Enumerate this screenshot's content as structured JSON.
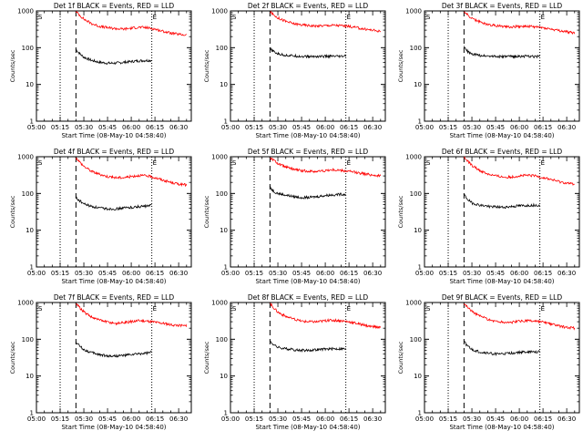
{
  "figure": {
    "x_tick_labels": [
      "05:00",
      "05:15",
      "05:30",
      "05:45",
      "06:00",
      "06:15",
      "06:30"
    ],
    "y_tick_labels": [
      "1",
      "10",
      "100",
      "1000"
    ],
    "xlabel": "Start Time (08-May-10 04:58:40)",
    "ylabel": "Counts/sec",
    "marker_start": "S",
    "marker_end": "E",
    "colors": {
      "events": "#000000",
      "lld": "#ff0000",
      "axes": "#000000",
      "background": "#ffffff"
    }
  },
  "chart_data": [
    {
      "type": "line",
      "title": "Det 1f BLACK = Events, RED = LLD",
      "xlabel": "Start Time (08-May-10 04:58:40)",
      "ylabel": "Counts/sec",
      "x_unit": "minutes after 05:00",
      "xlim": [
        0,
        98
      ],
      "ylim": [
        1,
        1000
      ],
      "yscale": "log",
      "vlines_dotted": [
        15,
        73
      ],
      "vline_dashed": 25,
      "series": [
        {
          "name": "Events",
          "color": "#000000",
          "x": [
            25,
            26,
            28,
            30,
            35,
            40,
            45,
            50,
            55,
            60,
            65,
            70,
            73
          ],
          "y": [
            90,
            80,
            65,
            55,
            45,
            40,
            38,
            38,
            40,
            42,
            44,
            45,
            45
          ]
        },
        {
          "name": "LLD",
          "color": "#ff0000",
          "x": [
            25,
            27,
            30,
            35,
            40,
            45,
            50,
            55,
            60,
            65,
            70,
            75,
            80,
            85,
            90,
            95
          ],
          "y": [
            950,
            800,
            600,
            450,
            380,
            350,
            330,
            320,
            340,
            360,
            350,
            320,
            280,
            250,
            230,
            220
          ]
        }
      ]
    },
    {
      "type": "line",
      "title": "Det 2f BLACK = Events, RED = LLD",
      "xlabel": "Start Time (08-May-10 04:58:40)",
      "ylabel": "Counts/sec",
      "x_unit": "minutes after 05:00",
      "xlim": [
        0,
        98
      ],
      "ylim": [
        1,
        1000
      ],
      "yscale": "log",
      "vlines_dotted": [
        15,
        73
      ],
      "vline_dashed": 25,
      "series": [
        {
          "name": "Events",
          "color": "#000000",
          "x": [
            25,
            26,
            28,
            30,
            35,
            40,
            45,
            50,
            55,
            60,
            65,
            70,
            73
          ],
          "y": [
            95,
            85,
            75,
            68,
            62,
            60,
            58,
            57,
            58,
            58,
            58,
            57,
            60
          ]
        },
        {
          "name": "LLD",
          "color": "#ff0000",
          "x": [
            25,
            27,
            30,
            35,
            40,
            45,
            50,
            55,
            60,
            65,
            70,
            75,
            80,
            85,
            90,
            95
          ],
          "y": [
            950,
            800,
            650,
            520,
            450,
            420,
            400,
            390,
            400,
            410,
            400,
            380,
            350,
            320,
            300,
            280
          ]
        }
      ]
    },
    {
      "type": "line",
      "title": "Det 3f BLACK = Events, RED = LLD",
      "xlabel": "Start Time (08-May-10 04:58:40)",
      "ylabel": "Counts/sec",
      "x_unit": "minutes after 05:00",
      "xlim": [
        0,
        98
      ],
      "ylim": [
        1,
        1000
      ],
      "yscale": "log",
      "vlines_dotted": [
        15,
        73
      ],
      "vline_dashed": 25,
      "series": [
        {
          "name": "Events",
          "color": "#000000",
          "x": [
            25,
            26,
            28,
            30,
            35,
            40,
            45,
            50,
            55,
            60,
            65,
            70,
            73
          ],
          "y": [
            110,
            90,
            75,
            66,
            62,
            60,
            58,
            57,
            58,
            58,
            58,
            57,
            60
          ]
        },
        {
          "name": "LLD",
          "color": "#ff0000",
          "x": [
            25,
            27,
            30,
            35,
            40,
            45,
            50,
            55,
            60,
            65,
            70,
            75,
            80,
            85,
            90,
            95
          ],
          "y": [
            950,
            800,
            620,
            500,
            430,
            400,
            380,
            370,
            380,
            380,
            370,
            350,
            320,
            290,
            270,
            250
          ]
        }
      ]
    },
    {
      "type": "line",
      "title": "Det 4f BLACK = Events, RED = LLD",
      "xlabel": "Start Time (08-May-10 04:58:40)",
      "ylabel": "Counts/sec",
      "x_unit": "minutes after 05:00",
      "xlim": [
        0,
        98
      ],
      "ylim": [
        1,
        1000
      ],
      "yscale": "log",
      "vlines_dotted": [
        15,
        73
      ],
      "vline_dashed": 25,
      "series": [
        {
          "name": "Events",
          "color": "#000000",
          "x": [
            25,
            26,
            28,
            30,
            35,
            40,
            45,
            50,
            55,
            60,
            65,
            70,
            73
          ],
          "y": [
            80,
            70,
            60,
            52,
            44,
            40,
            38,
            38,
            40,
            42,
            44,
            45,
            48
          ]
        },
        {
          "name": "LLD",
          "color": "#ff0000",
          "x": [
            25,
            27,
            30,
            35,
            40,
            45,
            50,
            55,
            60,
            65,
            70,
            75,
            80,
            85,
            90,
            95
          ],
          "y": [
            950,
            750,
            550,
            400,
            330,
            290,
            270,
            270,
            290,
            310,
            300,
            270,
            230,
            200,
            180,
            170
          ]
        }
      ]
    },
    {
      "type": "line",
      "title": "Det 5f BLACK = Events, RED = LLD",
      "xlabel": "Start Time (08-May-10 04:58:40)",
      "ylabel": "Counts/sec",
      "x_unit": "minutes after 05:00",
      "xlim": [
        0,
        98
      ],
      "ylim": [
        1,
        1000
      ],
      "yscale": "log",
      "vlines_dotted": [
        15,
        73
      ],
      "vline_dashed": 25,
      "series": [
        {
          "name": "Events",
          "color": "#000000",
          "x": [
            25,
            26,
            28,
            30,
            35,
            40,
            45,
            50,
            55,
            60,
            65,
            70,
            73
          ],
          "y": [
            160,
            130,
            110,
            100,
            90,
            82,
            78,
            78,
            82,
            88,
            92,
            95,
            95
          ]
        },
        {
          "name": "LLD",
          "color": "#ff0000",
          "x": [
            25,
            27,
            30,
            35,
            40,
            45,
            50,
            55,
            60,
            65,
            70,
            75,
            80,
            85,
            90,
            95
          ],
          "y": [
            950,
            820,
            650,
            520,
            450,
            420,
            400,
            400,
            420,
            440,
            420,
            400,
            370,
            340,
            320,
            300
          ]
        }
      ]
    },
    {
      "type": "line",
      "title": "Det 6f BLACK = Events, RED = LLD",
      "xlabel": "Start Time (08-May-10 04:58:40)",
      "ylabel": "Counts/sec",
      "x_unit": "minutes after 05:00",
      "xlim": [
        0,
        98
      ],
      "ylim": [
        1,
        1000
      ],
      "yscale": "log",
      "vlines_dotted": [
        15,
        73
      ],
      "vline_dashed": 25,
      "series": [
        {
          "name": "Events",
          "color": "#000000",
          "x": [
            25,
            26,
            28,
            30,
            35,
            40,
            45,
            50,
            55,
            60,
            65,
            70,
            73
          ],
          "y": [
            95,
            80,
            65,
            55,
            48,
            45,
            43,
            42,
            44,
            46,
            47,
            48,
            48
          ]
        },
        {
          "name": "LLD",
          "color": "#ff0000",
          "x": [
            25,
            27,
            30,
            35,
            40,
            45,
            50,
            55,
            60,
            65,
            70,
            75,
            80,
            85,
            90,
            95
          ],
          "y": [
            950,
            780,
            580,
            420,
            340,
            300,
            280,
            280,
            300,
            310,
            300,
            270,
            240,
            210,
            190,
            180
          ]
        }
      ]
    },
    {
      "type": "line",
      "title": "Det 7f BLACK = Events, RED = LLD",
      "xlabel": "Start Time (08-May-10 04:58:40)",
      "ylabel": "Counts/sec",
      "x_unit": "minutes after 05:00",
      "xlim": [
        0,
        98
      ],
      "ylim": [
        1,
        1000
      ],
      "yscale": "log",
      "vlines_dotted": [
        15,
        73
      ],
      "vline_dashed": 25,
      "series": [
        {
          "name": "Events",
          "color": "#000000",
          "x": [
            25,
            26,
            28,
            30,
            35,
            40,
            45,
            50,
            55,
            60,
            65,
            70,
            73
          ],
          "y": [
            85,
            75,
            62,
            52,
            43,
            38,
            35,
            35,
            36,
            38,
            40,
            42,
            45
          ]
        },
        {
          "name": "LLD",
          "color": "#ff0000",
          "x": [
            25,
            27,
            30,
            35,
            40,
            45,
            50,
            55,
            60,
            65,
            70,
            75,
            80,
            85,
            90,
            95
          ],
          "y": [
            950,
            750,
            550,
            400,
            330,
            290,
            270,
            280,
            300,
            320,
            310,
            290,
            270,
            250,
            240,
            230
          ]
        }
      ]
    },
    {
      "type": "line",
      "title": "Det 8f BLACK = Events, RED = LLD",
      "xlabel": "Start Time (08-May-10 04:58:40)",
      "ylabel": "Counts/sec",
      "x_unit": "minutes after 05:00",
      "xlim": [
        0,
        98
      ],
      "ylim": [
        1,
        1000
      ],
      "yscale": "log",
      "vlines_dotted": [
        15,
        73
      ],
      "vline_dashed": 25,
      "series": [
        {
          "name": "Events",
          "color": "#000000",
          "x": [
            25,
            26,
            28,
            30,
            35,
            40,
            45,
            50,
            55,
            60,
            65,
            70,
            73
          ],
          "y": [
            90,
            80,
            68,
            60,
            55,
            52,
            50,
            50,
            52,
            54,
            55,
            55,
            55
          ]
        },
        {
          "name": "LLD",
          "color": "#ff0000",
          "x": [
            25,
            27,
            30,
            35,
            40,
            45,
            50,
            55,
            60,
            65,
            70,
            75,
            80,
            85,
            90,
            95
          ],
          "y": [
            950,
            750,
            550,
            420,
            350,
            310,
            300,
            300,
            320,
            330,
            320,
            300,
            270,
            240,
            220,
            210
          ]
        }
      ]
    },
    {
      "type": "line",
      "title": "Det 9f BLACK = Events, RED = LLD",
      "xlabel": "Start Time (08-May-10 04:58:40)",
      "ylabel": "Counts/sec",
      "x_unit": "minutes after 05:00",
      "xlim": [
        0,
        98
      ],
      "ylim": [
        1,
        1000
      ],
      "yscale": "log",
      "vlines_dotted": [
        15,
        73
      ],
      "vline_dashed": 25,
      "series": [
        {
          "name": "Events",
          "color": "#000000",
          "x": [
            25,
            26,
            28,
            30,
            35,
            40,
            45,
            50,
            55,
            60,
            65,
            70,
            73
          ],
          "y": [
            85,
            75,
            62,
            52,
            45,
            42,
            40,
            40,
            42,
            44,
            45,
            45,
            46
          ]
        },
        {
          "name": "LLD",
          "color": "#ff0000",
          "x": [
            25,
            27,
            30,
            35,
            40,
            45,
            50,
            55,
            60,
            65,
            70,
            75,
            80,
            85,
            90,
            95
          ],
          "y": [
            950,
            780,
            580,
            430,
            350,
            310,
            290,
            290,
            310,
            320,
            310,
            290,
            260,
            230,
            210,
            200
          ]
        }
      ]
    }
  ]
}
